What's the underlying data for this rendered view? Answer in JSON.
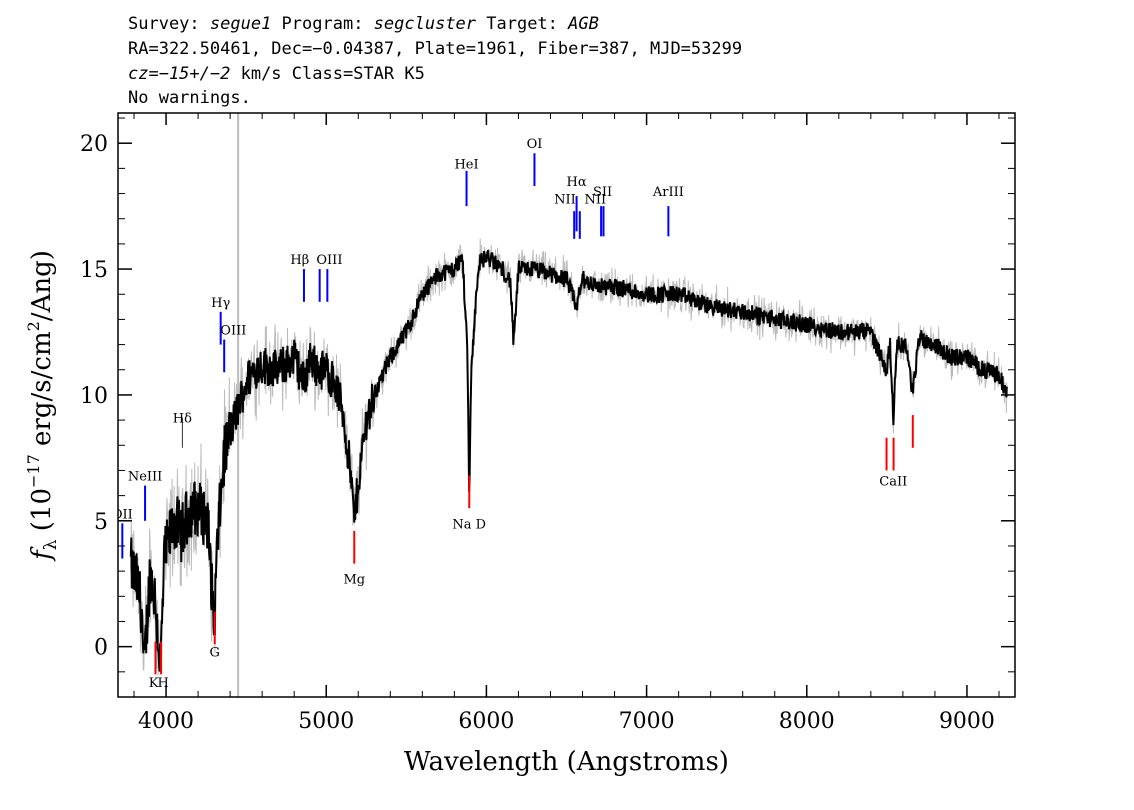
{
  "header": {
    "line1": [
      {
        "t": "Survey: ",
        "i": false
      },
      {
        "t": "segue1",
        "i": true
      },
      {
        "t": " Program: ",
        "i": false
      },
      {
        "t": "segcluster",
        "i": true
      },
      {
        "t": " Target: ",
        "i": false
      },
      {
        "t": "AGB",
        "i": true
      }
    ],
    "line2": "RA=322.50461, Dec=−0.04387, Plate=1961, Fiber=387, MJD=53299",
    "line3": [
      {
        "t": "cz=−15+/−2",
        "i": true
      },
      {
        "t": " km/s Class=STAR K5",
        "i": false
      }
    ],
    "line4": "No warnings."
  },
  "chart_data": {
    "type": "line",
    "xlabel": "Wavelength (Angstroms)",
    "ylabel": "fλ (10⁻¹⁷ erg/s/cm²/Ang)",
    "ylabel_parts": {
      "f": "f",
      "sub": "λ",
      "open": " (10",
      "exp": "−17",
      "mid": " erg/s/cm",
      "sq": "2",
      "close": "/Ang)"
    },
    "xlim": [
      3700,
      9300
    ],
    "ylim": [
      -2,
      21.2
    ],
    "x_ticks": [
      4000,
      5000,
      6000,
      7000,
      8000,
      9000
    ],
    "y_ticks": [
      0,
      5,
      10,
      15,
      20
    ],
    "grid": false,
    "vertical_marker_x": 4450,
    "colors": {
      "flux": "#000000",
      "error": "#bbbbbb",
      "emission": "#0000ff",
      "absorption": "#ff0000",
      "marker": "#bbbbbb"
    },
    "spectrum_knots": [
      [
        3780,
        3.2
      ],
      [
        3820,
        2.5
      ],
      [
        3850,
        1.5
      ],
      [
        3860,
        -1.2
      ],
      [
        3900,
        3.0
      ],
      [
        3930,
        2.0
      ],
      [
        3965,
        -0.8
      ],
      [
        3990,
        3.5
      ],
      [
        4050,
        5.0
      ],
      [
        4100,
        4.5
      ],
      [
        4150,
        5.5
      ],
      [
        4200,
        5.5
      ],
      [
        4260,
        5.0
      ],
      [
        4300,
        0.8
      ],
      [
        4320,
        4.0
      ],
      [
        4360,
        7.5
      ],
      [
        4400,
        8.5
      ],
      [
        4450,
        9.5
      ],
      [
        4500,
        10.5
      ],
      [
        4550,
        11.0
      ],
      [
        4600,
        11.2
      ],
      [
        4700,
        11.0
      ],
      [
        4800,
        11.5
      ],
      [
        4861,
        10.5
      ],
      [
        4900,
        11.5
      ],
      [
        4950,
        11.0
      ],
      [
        5000,
        11.0
      ],
      [
        5050,
        10.5
      ],
      [
        5100,
        9.5
      ],
      [
        5150,
        7.0
      ],
      [
        5175,
        5.0
      ],
      [
        5200,
        6.5
      ],
      [
        5250,
        9.0
      ],
      [
        5300,
        10.0
      ],
      [
        5400,
        11.5
      ],
      [
        5500,
        12.5
      ],
      [
        5600,
        14.0
      ],
      [
        5700,
        14.8
      ],
      [
        5800,
        15.0
      ],
      [
        5850,
        15.5
      ],
      [
        5880,
        12.0
      ],
      [
        5893,
        6.0
      ],
      [
        5905,
        11.0
      ],
      [
        5950,
        15.2
      ],
      [
        6000,
        15.5
      ],
      [
        6100,
        15.0
      ],
      [
        6150,
        14.5
      ],
      [
        6170,
        12.0
      ],
      [
        6200,
        15.0
      ],
      [
        6300,
        15.0
      ],
      [
        6400,
        14.8
      ],
      [
        6500,
        14.6
      ],
      [
        6563,
        13.5
      ],
      [
        6600,
        14.6
      ],
      [
        6700,
        14.3
      ],
      [
        6800,
        14.3
      ],
      [
        7000,
        14.0
      ],
      [
        7200,
        14.0
      ],
      [
        7400,
        13.5
      ],
      [
        7600,
        13.3
      ],
      [
        7800,
        13.0
      ],
      [
        8000,
        12.8
      ],
      [
        8200,
        12.5
      ],
      [
        8400,
        12.5
      ],
      [
        8498,
        11.0
      ],
      [
        8520,
        12.0
      ],
      [
        8542,
        9.0
      ],
      [
        8560,
        12.0
      ],
      [
        8620,
        12.0
      ],
      [
        8662,
        10.0
      ],
      [
        8700,
        12.3
      ],
      [
        8800,
        12.0
      ],
      [
        8900,
        11.5
      ],
      [
        9000,
        11.5
      ],
      [
        9100,
        11.0
      ],
      [
        9200,
        10.8
      ],
      [
        9250,
        10.0
      ]
    ],
    "line_ids": [
      {
        "name": "OII",
        "x": 3727,
        "kind": "emission",
        "y": 3.5,
        "len": 1.4,
        "lx": 3727,
        "ly": 5.1
      },
      {
        "name": "NeIII",
        "x": 3869,
        "kind": "emission",
        "y": 5.0,
        "len": 1.4,
        "lx": 3869,
        "ly": 6.6
      },
      {
        "name": "K",
        "x": 3934,
        "kind": "absorption",
        "y": -1.1,
        "len": 1.3,
        "lx": 3922,
        "ly": -1.6
      },
      {
        "name": "H",
        "x": 3969,
        "kind": "absorption",
        "y": -1.1,
        "len": 1.3,
        "lx": 3982,
        "ly": -1.6
      },
      {
        "name": "Hδ",
        "x": 4102,
        "kind": "emission",
        "y": 7.9,
        "len": 0,
        "lx": 4102,
        "ly": 8.9
      },
      {
        "name": "G",
        "x": 4304,
        "kind": "absorption",
        "y": 0.1,
        "len": 1.3,
        "lx": 4304,
        "ly": -0.4
      },
      {
        "name": "Hγ",
        "x": 4341,
        "kind": "emission",
        "y": 12.0,
        "len": 1.3,
        "lx": 4341,
        "ly": 13.5
      },
      {
        "name": "OIII",
        "x": 4363,
        "kind": "emission",
        "y": 10.9,
        "len": 1.3,
        "lx": 4420,
        "ly": 12.4
      },
      {
        "name": "Hβ",
        "x": 4861,
        "kind": "emission",
        "y": 13.7,
        "len": 1.3,
        "lx": 4835,
        "ly": 15.2
      },
      {
        "name": "OIII",
        "x": 4959,
        "kind": "emission",
        "y": 13.7,
        "len": 1.3,
        "lx": 5020,
        "ly": 15.2
      },
      {
        "name": "OIII",
        "x": 5007,
        "kind": "emission",
        "y": 13.7,
        "len": 1.3,
        "lx": null,
        "ly": null
      },
      {
        "name": "Mg",
        "x": 5175,
        "kind": "absorption",
        "y": 3.3,
        "len": 1.3,
        "lx": 5175,
        "ly": 2.5
      },
      {
        "name": "HeI",
        "x": 5876,
        "kind": "emission",
        "y": 17.5,
        "len": 1.4,
        "lx": 5876,
        "ly": 19.0
      },
      {
        "name": "Na D",
        "x": 5893,
        "kind": "absorption",
        "y": 5.5,
        "len": 1.3,
        "lx": 5893,
        "ly": 4.7
      },
      {
        "name": "OI",
        "x": 6300,
        "kind": "emission",
        "y": 18.3,
        "len": 1.3,
        "lx": 6300,
        "ly": 19.8
      },
      {
        "name": "NII",
        "x": 6548,
        "kind": "emission",
        "y": 16.2,
        "len": 1.1,
        "lx": 6490,
        "ly": 17.6
      },
      {
        "name": "Hα",
        "x": 6563,
        "kind": "emission",
        "y": 16.5,
        "len": 1.4,
        "lx": 6563,
        "ly": 18.3
      },
      {
        "name": "NII",
        "x": 6583,
        "kind": "emission",
        "y": 16.2,
        "len": 1.1,
        "lx": 6680,
        "ly": 17.6
      },
      {
        "name": "SII",
        "x": 6716,
        "kind": "emission",
        "y": 16.3,
        "len": 1.2,
        "lx": 6725,
        "ly": 17.9
      },
      {
        "name": "SII",
        "x": 6731,
        "kind": "emission",
        "y": 16.3,
        "len": 1.2,
        "lx": null,
        "ly": null
      },
      {
        "name": "ArIII",
        "x": 7136,
        "kind": "emission",
        "y": 16.3,
        "len": 1.2,
        "lx": 7136,
        "ly": 17.9
      },
      {
        "name": "CaII",
        "x": 8498,
        "kind": "absorption",
        "y": 7.0,
        "len": 1.3,
        "lx": 8540,
        "ly": 6.4
      },
      {
        "name": "CaII",
        "x": 8542,
        "kind": "absorption",
        "y": 7.0,
        "len": 1.3,
        "lx": null,
        "ly": null
      },
      {
        "name": "CaII",
        "x": 8662,
        "kind": "absorption",
        "y": 7.9,
        "len": 1.3,
        "lx": null,
        "ly": null
      }
    ]
  }
}
